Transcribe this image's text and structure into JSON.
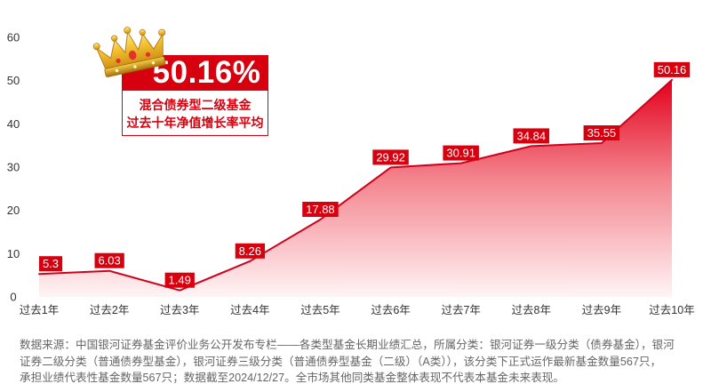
{
  "chart_data": {
    "type": "area",
    "categories": [
      "过去1年",
      "过去2年",
      "过去3年",
      "过去4年",
      "过去5年",
      "过去6年",
      "过去7年",
      "过去8年",
      "过去9年",
      "过去10年"
    ],
    "values": [
      5.3,
      6.03,
      1.49,
      8.26,
      17.88,
      29.92,
      30.91,
      34.84,
      35.55,
      50.16
    ],
    "yticks": [
      0,
      10,
      20,
      30,
      40,
      50,
      60
    ],
    "ylim": [
      0,
      60
    ],
    "grid": false,
    "legend": false,
    "data_labels": true,
    "colors": {
      "line": "#d0021b",
      "fill_top": "#e3001c",
      "fill_mid": "#f3838d",
      "fill_bottom": "#fff4f5",
      "label_bg": "#d7000f",
      "label_text": "#ffffff",
      "accent": "#d7000f"
    },
    "annotation": {
      "icon": "crown-icon",
      "value": "50.16%",
      "lines": [
        "混合债券型二级基金",
        "过去十年净值增长率平均"
      ]
    }
  },
  "footer": {
    "source_note_lines": [
      "数据来源：中国银河证券基金评价业务公开发布专栏——各类型基金长期业绩汇总，所属分类：银河证券一级分类（债券基金），银河",
      "证券二级分类（普通债券型基金），银河证券三级分类（普通债券型基金（二级）（A类）），该分类下正式运作最新基金数量567只，",
      "承担业绩代表性基金数量567只；数据截至2024/12/27。全市场其他同类基金整体表现不代表本基金未来表现。"
    ]
  }
}
